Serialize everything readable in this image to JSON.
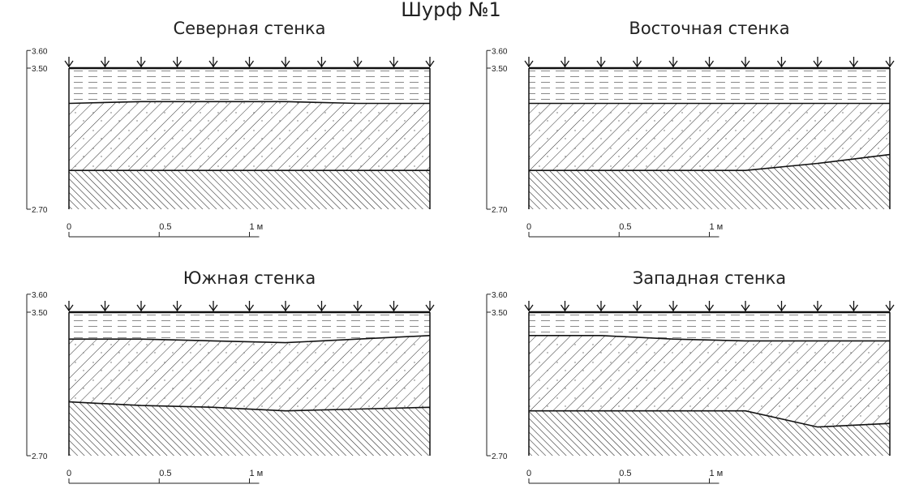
{
  "page_title": "Шурф №1",
  "scale_ticks": [
    "0",
    "0.5",
    "1 м"
  ],
  "depth_labels": [
    "3.60",
    "3.50",
    "2.70"
  ],
  "panels": [
    {
      "title": "Северная стенка",
      "layer1_bottom": [
        3.3,
        3.31,
        3.31,
        3.31,
        3.3,
        3.3
      ],
      "layer2_bottom": [
        2.92,
        2.92,
        2.92,
        2.92,
        2.92,
        2.92
      ]
    },
    {
      "title": "Восточная стенка",
      "layer1_bottom": [
        3.3,
        3.3,
        3.3,
        3.3,
        3.3,
        3.3
      ],
      "layer2_bottom": [
        2.92,
        2.92,
        2.92,
        2.92,
        2.96,
        3.01
      ]
    },
    {
      "title": "Южная стенка",
      "layer1_bottom": [
        3.35,
        3.35,
        3.34,
        3.33,
        3.35,
        3.37
      ],
      "layer2_bottom": [
        3.0,
        2.98,
        2.97,
        2.95,
        2.96,
        2.97
      ]
    },
    {
      "title": "Западная стенка",
      "layer1_bottom": [
        3.37,
        3.37,
        3.35,
        3.34,
        3.34,
        3.34
      ],
      "layer2_bottom": [
        2.95,
        2.95,
        2.95,
        2.95,
        2.86,
        2.88
      ]
    }
  ]
}
